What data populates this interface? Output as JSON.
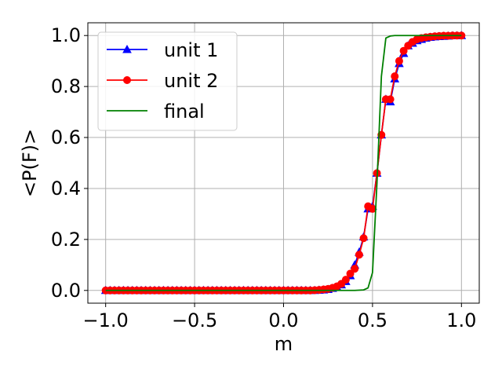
{
  "chart_data": {
    "type": "line",
    "title": "",
    "xlabel": "m",
    "ylabel": "<P(F)>",
    "xlim": [
      -1.1,
      1.1
    ],
    "ylim": [
      -0.05,
      1.05
    ],
    "xticks": [
      -1.0,
      -0.5,
      0.0,
      0.5,
      1.0
    ],
    "xtick_labels": [
      "−1.0",
      "−0.5",
      "0.0",
      "0.5",
      "1.0"
    ],
    "yticks": [
      0.0,
      0.2,
      0.4,
      0.6,
      0.8,
      1.0
    ],
    "ytick_labels": [
      "0.0",
      "0.2",
      "0.4",
      "0.6",
      "0.8",
      "1.0"
    ],
    "grid": true,
    "legend_position": "top-left",
    "series": [
      {
        "name": "unit 1",
        "color": "#0000ff",
        "marker": "triangle",
        "x": [
          -1.0,
          -0.975,
          -0.95,
          -0.925,
          -0.9,
          -0.875,
          -0.85,
          -0.825,
          -0.8,
          -0.775,
          -0.75,
          -0.725,
          -0.7,
          -0.675,
          -0.65,
          -0.625,
          -0.6,
          -0.575,
          -0.55,
          -0.525,
          -0.5,
          -0.475,
          -0.45,
          -0.425,
          -0.4,
          -0.375,
          -0.35,
          -0.325,
          -0.3,
          -0.275,
          -0.25,
          -0.225,
          -0.2,
          -0.175,
          -0.15,
          -0.125,
          -0.1,
          -0.075,
          -0.05,
          -0.025,
          0.0,
          0.025,
          0.05,
          0.075,
          0.1,
          0.125,
          0.15,
          0.175,
          0.2,
          0.225,
          0.25,
          0.275,
          0.3,
          0.325,
          0.35,
          0.375,
          0.4,
          0.425,
          0.45,
          0.475,
          0.5,
          0.525,
          0.55,
          0.575,
          0.6,
          0.625,
          0.65,
          0.675,
          0.7,
          0.725,
          0.75,
          0.775,
          0.8,
          0.825,
          0.85,
          0.875,
          0.9,
          0.925,
          0.95,
          0.975,
          1.0
        ],
        "y": [
          0,
          0,
          0,
          0,
          0,
          0,
          0,
          0,
          0,
          0,
          0,
          0,
          0,
          0,
          0,
          0,
          0,
          0,
          0,
          0,
          0,
          0,
          0,
          0,
          0,
          0,
          0,
          0,
          0,
          0,
          0,
          0,
          0,
          0,
          0,
          0,
          0,
          0,
          0,
          0,
          0,
          0,
          0,
          0,
          0,
          0,
          0,
          0,
          0.001,
          0.002,
          0.004,
          0.008,
          0.013,
          0.022,
          0.035,
          0.058,
          0.1,
          0.15,
          0.21,
          0.32,
          0.33,
          0.46,
          0.61,
          0.75,
          0.74,
          0.83,
          0.89,
          0.93,
          0.96,
          0.97,
          0.98,
          0.985,
          0.99,
          0.993,
          0.995,
          0.996,
          0.997,
          0.998,
          0.999,
          0.999,
          1.0
        ]
      },
      {
        "name": "unit 2",
        "color": "#ff0000",
        "marker": "circle",
        "x": [
          -1.0,
          -0.975,
          -0.95,
          -0.925,
          -0.9,
          -0.875,
          -0.85,
          -0.825,
          -0.8,
          -0.775,
          -0.75,
          -0.725,
          -0.7,
          -0.675,
          -0.65,
          -0.625,
          -0.6,
          -0.575,
          -0.55,
          -0.525,
          -0.5,
          -0.475,
          -0.45,
          -0.425,
          -0.4,
          -0.375,
          -0.35,
          -0.325,
          -0.3,
          -0.275,
          -0.25,
          -0.225,
          -0.2,
          -0.175,
          -0.15,
          -0.125,
          -0.1,
          -0.075,
          -0.05,
          -0.025,
          0.0,
          0.025,
          0.05,
          0.075,
          0.1,
          0.125,
          0.15,
          0.175,
          0.2,
          0.225,
          0.25,
          0.275,
          0.3,
          0.325,
          0.35,
          0.375,
          0.4,
          0.425,
          0.45,
          0.475,
          0.5,
          0.525,
          0.55,
          0.575,
          0.6,
          0.625,
          0.65,
          0.675,
          0.7,
          0.725,
          0.75,
          0.775,
          0.8,
          0.825,
          0.85,
          0.875,
          0.9,
          0.925,
          0.95,
          0.975,
          1.0
        ],
        "y": [
          0,
          0,
          0,
          0,
          0,
          0,
          0,
          0,
          0,
          0,
          0,
          0,
          0,
          0,
          0,
          0,
          0,
          0,
          0,
          0,
          0,
          0,
          0,
          0,
          0,
          0,
          0,
          0,
          0,
          0,
          0,
          0,
          0,
          0,
          0,
          0,
          0,
          0,
          0,
          0,
          0,
          0,
          0,
          0,
          0,
          0,
          0,
          0.001,
          0.002,
          0.004,
          0.006,
          0.01,
          0.016,
          0.026,
          0.042,
          0.066,
          0.085,
          0.14,
          0.205,
          0.33,
          0.32,
          0.46,
          0.61,
          0.75,
          0.75,
          0.84,
          0.9,
          0.94,
          0.96,
          0.975,
          0.985,
          0.99,
          0.993,
          0.995,
          0.997,
          0.998,
          0.999,
          0.999,
          1.0,
          1.0,
          1.0
        ]
      },
      {
        "name": "final",
        "color": "#008000",
        "marker": "none",
        "x": [
          -1.0,
          -0.9,
          -0.8,
          -0.7,
          -0.6,
          -0.5,
          -0.4,
          -0.3,
          -0.2,
          -0.1,
          0.0,
          0.1,
          0.2,
          0.3,
          0.35,
          0.4,
          0.45,
          0.475,
          0.5,
          0.525,
          0.55,
          0.575,
          0.6,
          0.625,
          0.65,
          0.7,
          0.8,
          0.9,
          1.0
        ],
        "y": [
          0,
          0,
          0,
          0,
          0,
          0,
          0,
          0,
          0,
          0,
          0,
          0,
          0,
          0,
          0,
          0,
          0.002,
          0.01,
          0.07,
          0.42,
          0.84,
          0.99,
          0.998,
          1.0,
          1.0,
          1.0,
          1.0,
          1.0,
          1.0
        ]
      }
    ]
  }
}
